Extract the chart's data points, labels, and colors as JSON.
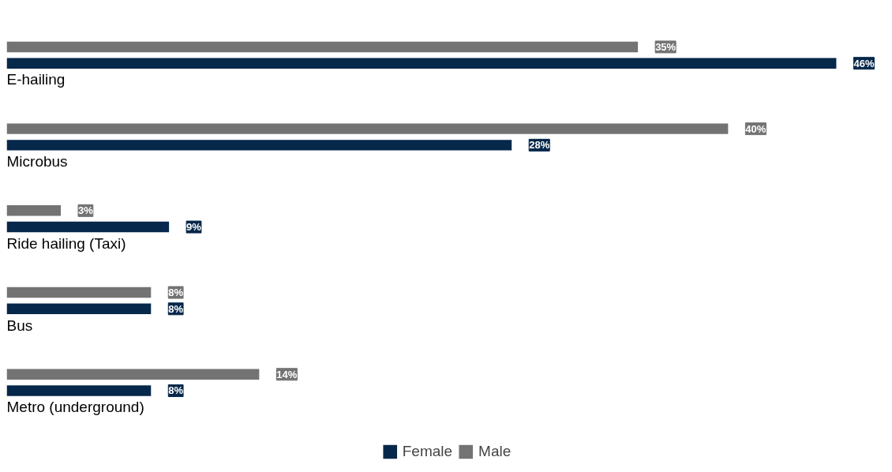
{
  "chart_data": {
    "type": "bar",
    "orientation": "horizontal",
    "categories": [
      "E-hailing",
      "Microbus",
      "Ride hailing (Taxi)",
      "Bus",
      "Metro (underground)"
    ],
    "series": [
      {
        "name": "Female",
        "color": "#06284a",
        "values": [
          46,
          28,
          9,
          8,
          8
        ],
        "value_labels": [
          "46%",
          "28%",
          "9%",
          "8%",
          "8%"
        ]
      },
      {
        "name": "Male",
        "color": "#737373",
        "values": [
          35,
          40,
          3,
          8,
          14
        ],
        "value_labels": [
          "35%",
          "40%",
          "3%",
          "8%",
          "14%"
        ]
      }
    ],
    "legend": "bottom",
    "grid": false
  }
}
